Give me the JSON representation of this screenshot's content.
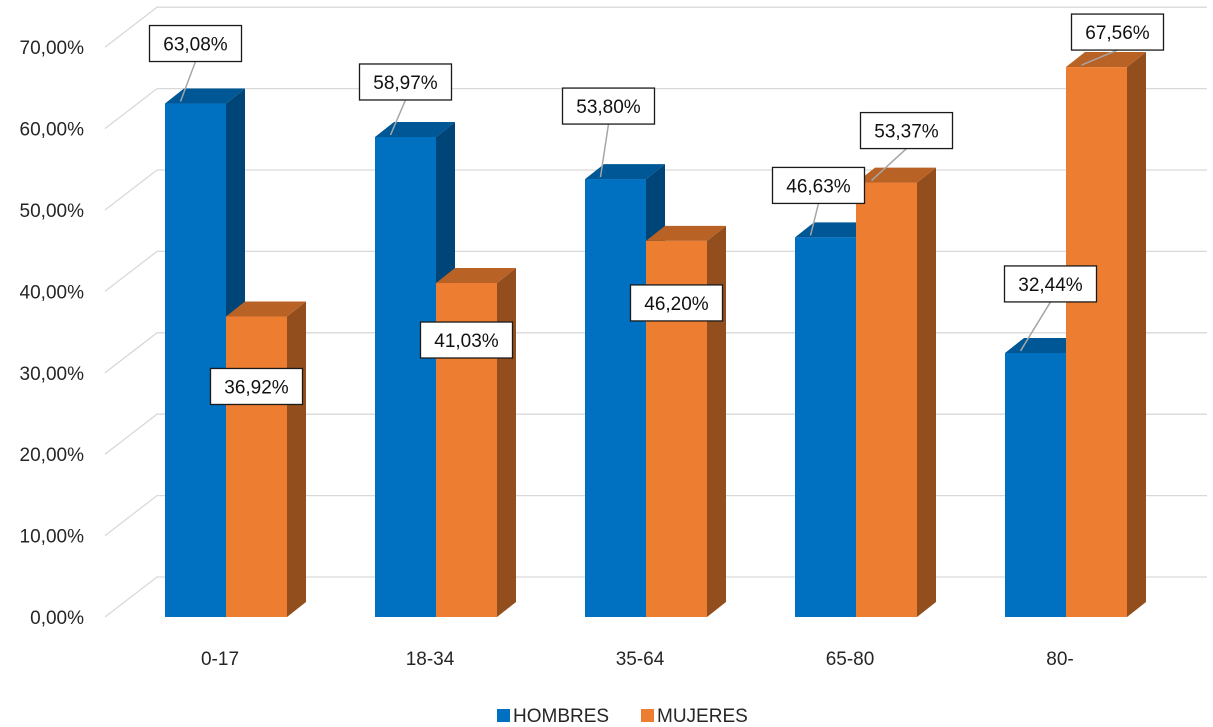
{
  "chart_data": {
    "type": "bar",
    "style": "3d-clustered-column",
    "categories": [
      "0-17",
      "18-34",
      "35-64",
      "65-80",
      "80-"
    ],
    "series": [
      {
        "name": "HOMBRES",
        "color": "#0070C0",
        "values": [
          63.08,
          58.97,
          53.8,
          46.63,
          32.44
        ],
        "labels": [
          "63,08%",
          "58,97%",
          "53,80%",
          "46,63%",
          "32,44%"
        ]
      },
      {
        "name": "MUJERES",
        "color": "#ED7D31",
        "values": [
          36.92,
          41.03,
          46.2,
          53.37,
          67.56
        ],
        "labels": [
          "36,92%",
          "41,03%",
          "46,20%",
          "53,37%",
          "67,56%"
        ]
      }
    ],
    "y_ticks": [
      "0,00%",
      "10,00%",
      "20,00%",
      "30,00%",
      "40,00%",
      "50,00%",
      "60,00%",
      "70,00%"
    ],
    "ylim": [
      0,
      70
    ],
    "grid": true,
    "legend_position": "bottom"
  }
}
